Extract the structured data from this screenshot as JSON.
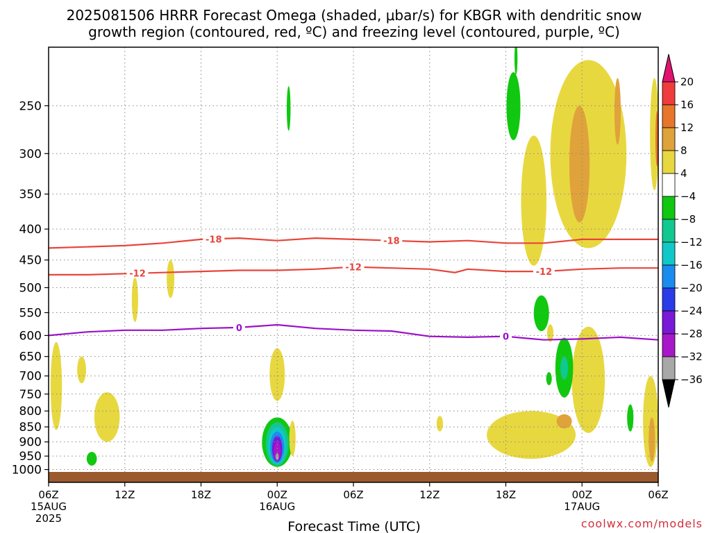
{
  "title": {
    "line1": "2025081506 HRRR Forecast Omega (shaded, μbar/s) for KBGR with dendritic snow",
    "line2": "growth region (contoured, red, ºC) and freezing level (contoured, purple, ºC)"
  },
  "xlabel": "Forecast Time (UTC)",
  "watermark": "coolwx.com/models",
  "colors": {
    "isotherm": "#e8443a",
    "freezing": "#9a10c8",
    "ground": "#9a5a2e",
    "grid": "#888888"
  },
  "chart_data": {
    "type": "heatmap",
    "subtype": "time-height cross section",
    "x_ticks": [
      {
        "hours": 0,
        "label": "06Z",
        "sub1": "15AUG",
        "sub2": "2025"
      },
      {
        "hours": 6,
        "label": "12Z",
        "sub1": "",
        "sub2": ""
      },
      {
        "hours": 12,
        "label": "18Z",
        "sub1": "",
        "sub2": ""
      },
      {
        "hours": 18,
        "label": "00Z",
        "sub1": "16AUG",
        "sub2": ""
      },
      {
        "hours": 24,
        "label": "06Z",
        "sub1": "",
        "sub2": ""
      },
      {
        "hours": 30,
        "label": "12Z",
        "sub1": "",
        "sub2": ""
      },
      {
        "hours": 36,
        "label": "18Z",
        "sub1": "",
        "sub2": ""
      },
      {
        "hours": 42,
        "label": "00Z",
        "sub1": "17AUG",
        "sub2": ""
      },
      {
        "hours": 48,
        "label": "06Z",
        "sub1": "",
        "sub2": ""
      }
    ],
    "x_range_hours": [
      0,
      48
    ],
    "y_axis": "pressure (hPa), log scale, decreasing upward",
    "y_range": [
      1050,
      200
    ],
    "y_ticks": [
      250,
      300,
      350,
      400,
      450,
      500,
      550,
      600,
      650,
      700,
      750,
      800,
      850,
      900,
      950,
      1000
    ],
    "grid": true,
    "colorbar": {
      "unit": "μbar/s",
      "labels": [
        "20",
        "16",
        "12",
        "8",
        "4",
        "−4",
        "−8",
        "−12",
        "−16",
        "−20",
        "−24",
        "−28",
        "−32",
        "−36"
      ],
      "bins": [
        {
          "range": "16 to 20",
          "color": "#f03c3c"
        },
        {
          "range": "12 to 16",
          "color": "#e8762a"
        },
        {
          "range": "8 to 12",
          "color": "#e0a23a"
        },
        {
          "range": "4 to 8",
          "color": "#e8d840"
        },
        {
          "range": "-4 to 4",
          "color": "#ffffff"
        },
        {
          "range": "-8 to -4",
          "color": "#10c810"
        },
        {
          "range": "-12 to -8",
          "color": "#10c890"
        },
        {
          "range": "-16 to -12",
          "color": "#10c8c8"
        },
        {
          "range": "-20 to -16",
          "color": "#1a8cf0"
        },
        {
          "range": "-24 to -20",
          "color": "#2a3ce8"
        },
        {
          "range": "-28 to -24",
          "color": "#7a18d8"
        },
        {
          "range": "-32 to -28",
          "color": "#a818c8"
        },
        {
          "range": "-36 to -32",
          "color": "#a8a8a8"
        }
      ],
      "over_color": "#e0146e",
      "under_color": "#000000"
    },
    "contours": [
      {
        "name": "-18",
        "color": "#e8443a",
        "points": [
          [
            0,
            430
          ],
          [
            3,
            428
          ],
          [
            6,
            426
          ],
          [
            9,
            422
          ],
          [
            12,
            416
          ],
          [
            15,
            414
          ],
          [
            18,
            418
          ],
          [
            21,
            414
          ],
          [
            24,
            416
          ],
          [
            27,
            418
          ],
          [
            30,
            420
          ],
          [
            33,
            418
          ],
          [
            36,
            422
          ],
          [
            39,
            422
          ],
          [
            42,
            416
          ],
          [
            45,
            416
          ],
          [
            48,
            416
          ]
        ],
        "label_positions": [
          13,
          27
        ]
      },
      {
        "name": "-12",
        "color": "#e8443a",
        "points": [
          [
            0,
            476
          ],
          [
            3,
            476
          ],
          [
            6,
            474
          ],
          [
            9,
            472
          ],
          [
            12,
            470
          ],
          [
            15,
            468
          ],
          [
            18,
            468
          ],
          [
            21,
            466
          ],
          [
            24,
            462
          ],
          [
            27,
            464
          ],
          [
            30,
            466
          ],
          [
            32,
            472
          ],
          [
            33,
            466
          ],
          [
            36,
            470
          ],
          [
            39,
            470
          ],
          [
            42,
            466
          ],
          [
            45,
            464
          ],
          [
            48,
            464
          ]
        ],
        "label_positions": [
          7,
          24,
          39
        ]
      },
      {
        "name": "0",
        "color": "#9a10c8",
        "points": [
          [
            0,
            600
          ],
          [
            3,
            592
          ],
          [
            6,
            588
          ],
          [
            9,
            588
          ],
          [
            12,
            584
          ],
          [
            15,
            582
          ],
          [
            18,
            576
          ],
          [
            21,
            584
          ],
          [
            24,
            588
          ],
          [
            27,
            590
          ],
          [
            30,
            602
          ],
          [
            33,
            604
          ],
          [
            36,
            602
          ],
          [
            39,
            610
          ],
          [
            42,
            608
          ],
          [
            45,
            604
          ],
          [
            48,
            610
          ]
        ],
        "label_positions": [
          15,
          36
        ]
      }
    ],
    "omega_regions": [
      {
        "bin": "4 to 8",
        "center_hours": 0.6,
        "center_hPa": 700,
        "radius_hours": 0.45,
        "extent_hPa": [
          615,
          860
        ]
      },
      {
        "bin": "4 to 8",
        "center_hours": 2.6,
        "center_hPa": 680,
        "radius_hours": 0.35,
        "extent_hPa": [
          650,
          720
        ]
      },
      {
        "bin": "4 to 8",
        "center_hours": 4.6,
        "center_hPa": 820,
        "radius_hours": 1.0,
        "extent_hPa": [
          745,
          900
        ]
      },
      {
        "bin": "-8 to -4",
        "center_hours": 3.4,
        "center_hPa": 960,
        "radius_hours": 0.4,
        "extent_hPa": [
          935,
          985
        ]
      },
      {
        "bin": "4 to 8",
        "center_hours": 6.8,
        "center_hPa": 520,
        "radius_hours": 0.25,
        "extent_hPa": [
          480,
          570
        ]
      },
      {
        "bin": "4 to 8",
        "center_hours": 9.6,
        "center_hPa": 485,
        "radius_hours": 0.3,
        "extent_hPa": [
          450,
          520
        ]
      },
      {
        "bin": "4 to 8",
        "center_hours": 18.0,
        "center_hPa": 700,
        "radius_hours": 0.6,
        "extent_hPa": [
          630,
          770
        ]
      },
      {
        "bin": "-8 to -4",
        "center_hours": 18.0,
        "center_hPa": 905,
        "radius_hours": 1.2,
        "extent_hPa": [
          820,
          990
        ]
      },
      {
        "bin": "-12 to -8",
        "center_hours": 18.0,
        "center_hPa": 915,
        "radius_hours": 0.9,
        "extent_hPa": [
          835,
          985
        ]
      },
      {
        "bin": "-16 to -12",
        "center_hours": 18.0,
        "center_hPa": 925,
        "radius_hours": 0.7,
        "extent_hPa": [
          850,
          980
        ]
      },
      {
        "bin": "-20 to -16",
        "center_hours": 18.0,
        "center_hPa": 930,
        "radius_hours": 0.55,
        "extent_hPa": [
          865,
          975
        ]
      },
      {
        "bin": "-28 to -24",
        "center_hours": 18.0,
        "center_hPa": 935,
        "radius_hours": 0.4,
        "extent_hPa": [
          880,
          970
        ]
      },
      {
        "bin": "-32 to -28",
        "center_hours": 18.0,
        "center_hPa": 945,
        "radius_hours": 0.25,
        "extent_hPa": [
          900,
          965
        ]
      },
      {
        "bin": "-36 to -32",
        "center_hours": 18.0,
        "center_hPa": 955,
        "radius_hours": 0.12,
        "extent_hPa": [
          940,
          965
        ]
      },
      {
        "bin": "4 to 8",
        "center_hours": 19.2,
        "center_hPa": 885,
        "radius_hours": 0.25,
        "extent_hPa": [
          830,
          950
        ]
      },
      {
        "bin": "-8 to -4",
        "center_hours": 18.9,
        "center_hPa": 250,
        "radius_hours": 0.15,
        "extent_hPa": [
          232,
          275
        ]
      },
      {
        "bin": "4 to 8",
        "center_hours": 30.8,
        "center_hPa": 835,
        "radius_hours": 0.25,
        "extent_hPa": [
          815,
          865
        ]
      },
      {
        "bin": "4 to 8",
        "center_hours": 38.0,
        "center_hPa": 880,
        "radius_hours": 3.5,
        "extent_hPa": [
          800,
          960
        ]
      },
      {
        "bin": "4 to 8",
        "center_hours": 42.5,
        "center_hPa": 730,
        "radius_hours": 1.3,
        "extent_hPa": [
          580,
          870
        ]
      },
      {
        "bin": "8 to 12",
        "center_hours": 40.6,
        "center_hPa": 830,
        "radius_hours": 0.6,
        "extent_hPa": [
          810,
          855
        ]
      },
      {
        "bin": "-8 to -4",
        "center_hours": 40.6,
        "center_hPa": 680,
        "radius_hours": 0.7,
        "extent_hPa": [
          605,
          760
        ]
      },
      {
        "bin": "-12 to -8",
        "center_hours": 40.6,
        "center_hPa": 680,
        "radius_hours": 0.3,
        "extent_hPa": [
          650,
          710
        ]
      },
      {
        "bin": "-8 to -4",
        "center_hours": 38.8,
        "center_hPa": 545,
        "radius_hours": 0.6,
        "extent_hPa": [
          515,
          590
        ]
      },
      {
        "bin": "4 to 8",
        "center_hours": 38.2,
        "center_hPa": 350,
        "radius_hours": 1.0,
        "extent_hPa": [
          280,
          460
        ]
      },
      {
        "bin": "4 to 8",
        "center_hours": 42.5,
        "center_hPa": 285,
        "radius_hours": 3.0,
        "extent_hPa": [
          210,
          430
        ]
      },
      {
        "bin": "8 to 12",
        "center_hours": 41.8,
        "center_hPa": 310,
        "radius_hours": 0.8,
        "extent_hPa": [
          250,
          390
        ]
      },
      {
        "bin": "8 to 12",
        "center_hours": 44.8,
        "center_hPa": 255,
        "radius_hours": 0.25,
        "extent_hPa": [
          225,
          290
        ]
      },
      {
        "bin": "-8 to -4",
        "center_hours": 36.6,
        "center_hPa": 245,
        "radius_hours": 0.55,
        "extent_hPa": [
          220,
          285
        ]
      },
      {
        "bin": "-8 to -4",
        "center_hours": 36.8,
        "center_hPa": 205,
        "radius_hours": 0.12,
        "extent_hPa": [
          196,
          222
        ]
      },
      {
        "bin": "4 to 8",
        "center_hours": 39.5,
        "center_hPa": 595,
        "radius_hours": 0.25,
        "extent_hPa": [
          575,
          615
        ]
      },
      {
        "bin": "-8 to -4",
        "center_hours": 39.4,
        "center_hPa": 705,
        "radius_hours": 0.22,
        "extent_hPa": [
          690,
          725
        ]
      },
      {
        "bin": "-8 to -4",
        "center_hours": 45.8,
        "center_hPa": 820,
        "radius_hours": 0.25,
        "extent_hPa": [
          780,
          865
        ]
      },
      {
        "bin": "4 to 8",
        "center_hours": 47.4,
        "center_hPa": 880,
        "radius_hours": 0.6,
        "extent_hPa": [
          700,
          990
        ]
      },
      {
        "bin": "8 to 12",
        "center_hours": 47.5,
        "center_hPa": 920,
        "radius_hours": 0.25,
        "extent_hPa": [
          820,
          970
        ]
      },
      {
        "bin": "4 to 8",
        "center_hours": 47.7,
        "center_hPa": 280,
        "radius_hours": 0.35,
        "extent_hPa": [
          225,
          345
        ]
      },
      {
        "bin": "12 to 16",
        "center_hours": 47.9,
        "center_hPa": 285,
        "radius_hours": 0.12,
        "extent_hPa": [
          255,
          315
        ]
      }
    ]
  }
}
